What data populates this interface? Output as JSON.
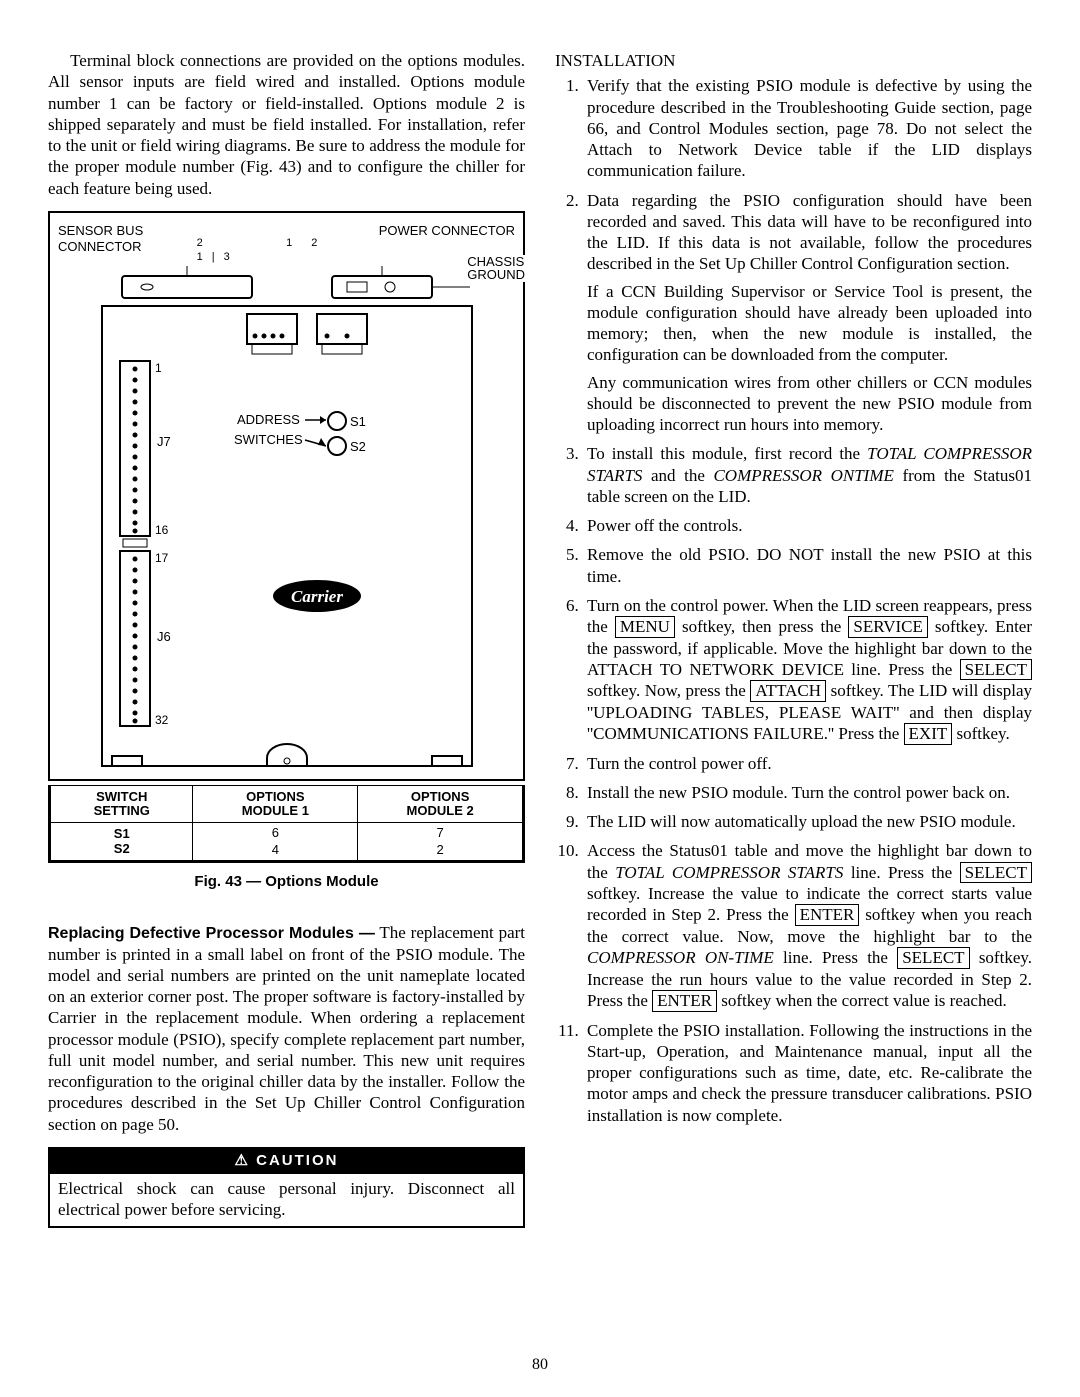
{
  "left": {
    "intro": "Terminal block connections are provided on the options modules. All sensor inputs are field wired and installed. Options module number 1 can be factory or field-installed. Options module 2 is shipped separately and must be field installed. For installation, refer to the unit or field wiring diagrams. Be sure to address the module for the proper module number (Fig. 43) and to configure the chiller for each feature being used.",
    "fig": {
      "sensor_bus": "SENSOR BUS\nCONNECTOR",
      "power_conn": "POWER CONNECTOR",
      "chassis": "CHASSIS\nGROUND",
      "address": "ADDRESS",
      "switches": "SWITCHES",
      "s1": "S1",
      "s2": "S2",
      "j7": "J7",
      "j6": "J6",
      "pins": {
        "p1": "1",
        "p16": "16",
        "p17": "17",
        "p32": "32"
      },
      "carrier": "Carrier",
      "top_nums": {
        "a": "1 | 3",
        "b": "1   2"
      }
    },
    "table": {
      "headers": [
        "SWITCH\nSETTING",
        "OPTIONS\nMODULE 1",
        "OPTIONS\nMODULE 2"
      ],
      "rows": [
        [
          "S1",
          "6",
          "7"
        ],
        [
          "S2",
          "4",
          "2"
        ]
      ]
    },
    "fig_caption": "Fig. 43 — Options Module",
    "replace_head": "Replacing Defective Processor Modules —",
    "replace_body": " The replacement part number is printed in a small label on front of the PSIO module. The model and serial numbers are printed on the unit nameplate located on an exterior corner post. The proper software is factory-installed by Carrier in the replacement module. When ordering a replacement processor module (PSIO), specify complete replacement part number, full unit model number, and serial number. This new unit requires reconfiguration to the original chiller data by the installer. Follow the procedures described in the Set Up Chiller Control Configuration section on page 50.",
    "caution_head": "CAUTION",
    "caution_body": "Electrical shock can cause personal injury. Disconnect all electrical power before servicing."
  },
  "right": {
    "heading": "INSTALLATION",
    "steps": {
      "s1": "Verify that the existing PSIO module is defective by using the procedure described in the Troubleshooting Guide section, page 66, and Control Modules section, page 78. Do not select the Attach to Network Device table if the LID displays communication failure.",
      "s2a": "Data regarding the PSIO configuration should have been recorded and saved. This data will have to be reconfigured into the LID. If this data is not available, follow the procedures described in the Set Up Chiller Control Configuration section.",
      "s2b": "If a CCN Building Supervisor or Service Tool is present, the module configuration should have already been uploaded into memory; then, when the new module is installed, the configuration can be downloaded from the computer.",
      "s2c": "Any communication wires from other chillers or CCN modules should be disconnected to prevent the new PSIO module from uploading incorrect run hours into memory.",
      "s3a": "To install this module, first record the ",
      "s3b": "TOTAL COMPRESSOR STARTS",
      "s3c": " and the ",
      "s3d": "COMPRESSOR ONTIME",
      "s3e": " from the Status01 table screen on the LID.",
      "s4": "Power off the controls.",
      "s5": "Remove the old PSIO. DO NOT install the new PSIO at this time.",
      "s6a": "Turn on the control power. When the LID screen reappears, press the ",
      "menu": "MENU",
      "s6b": " softkey, then press the ",
      "service": "SERVICE",
      "s6c": " softkey. Enter the password, if applicable. Move the highlight bar down to the ATTACH TO NETWORK DEVICE line. Press the ",
      "select": "SELECT",
      "s6d": " softkey. Now, press the ",
      "attach": "ATTACH",
      "s6e": " softkey. The LID will display ''UPLOADING TABLES, PLEASE WAIT'' and then display ''COMMUNICATIONS FAILURE.'' Press the ",
      "exit": "EXIT",
      "s6f": " softkey.",
      "s7": "Turn the control power off.",
      "s8": "Install the new PSIO module. Turn the control power back on.",
      "s9": "The LID will now automatically upload the new PSIO module.",
      "s10a": "Access the Status01 table and move the highlight bar down to the ",
      "s10b": "TOTAL COMPRESSOR STARTS",
      "s10c": " line. Press the ",
      "s10d": " softkey. Increase the value to indicate the correct starts value recorded in Step 2. Press the ",
      "enter": "ENTER",
      "s10e": " softkey when you reach the correct value. Now, move the highlight bar to the ",
      "s10f": "COMPRESSOR ON-TIME",
      "s10g": " line. Press the ",
      "s10h": " softkey. Increase the run hours value to the value recorded in Step 2. Press the ",
      "s10i": " softkey when the correct value is reached.",
      "s11": "Complete the PSIO installation. Following the instructions in the Start-up, Operation, and Maintenance manual, input all the proper configurations such as time, date, etc. Re-calibrate the motor amps and check the pressure transducer calibrations. PSIO installation is now complete."
    }
  },
  "pagenum": "80",
  "colors": {
    "text": "#000000",
    "bg": "#ffffff"
  }
}
